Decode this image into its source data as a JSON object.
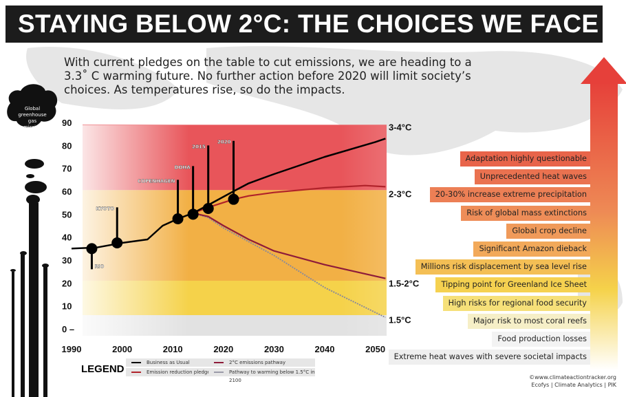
{
  "title": "STAYING BELOW 2°C: THE CHOICES WE FACE",
  "intro": "With current pledges on the table to cut emissions, we are heading to a 3.3˚ C warming future. No further action before 2020 will limit society’s choices. As temperatures rise, so do the impacts.",
  "colors": {
    "red_band": "#e8555a",
    "orange_band": "#f2b045",
    "yellow_band": "#f5d24a",
    "grey_band": "#e2e2e2",
    "bau": "#000000",
    "pledges": "#b0222a",
    "two_deg": "#8e1b3a",
    "one_five": "#8a8a9a"
  },
  "chart_data": {
    "type": "line",
    "ylabel": "Global greenhouse gas emissions (GtCO₂eq.)",
    "ylabel_parts": [
      "Global",
      "greenhouse gas",
      "emissions",
      "(GtCO₂eq.)"
    ],
    "xlim": [
      1990,
      2052
    ],
    "ylim": [
      0,
      90
    ],
    "xticks": [
      "1990",
      "2000",
      "2010",
      "2020",
      "2030",
      "2040",
      "2050"
    ],
    "yticks": [
      "0",
      "10",
      "20",
      "30",
      "40",
      "50",
      "60",
      "70",
      "80",
      "90"
    ],
    "bands": [
      {
        "label": "3-4°C",
        "from": 60.5,
        "to": 89,
        "label_at": 88
      },
      {
        "label": "2-3°C",
        "from": 21,
        "to": 60.5,
        "label_at": 59
      },
      {
        "label": "1.5-2°C",
        "from": 6,
        "to": 21,
        "label_at": 20
      },
      {
        "label": "1.5°C",
        "from": -3,
        "to": 6,
        "label_at": 4
      }
    ],
    "series": [
      {
        "name": "Business as Usual",
        "x": [
          1990,
          1995,
          2000,
          2005,
          2008,
          2011,
          2014,
          2017,
          2022,
          2025,
          2030,
          2040,
          2050,
          2052
        ],
        "y": [
          35,
          35.5,
          37.5,
          39,
          45,
          48,
          50.5,
          54,
          60,
          63.5,
          67.5,
          75,
          81.5,
          83
        ]
      },
      {
        "name": "Emission reduction pledges",
        "x": [
          2014,
          2017,
          2022,
          2025,
          2030,
          2040,
          2048,
          2052
        ],
        "y": [
          50.5,
          53,
          56.5,
          58,
          59.5,
          61.5,
          62.5,
          62
        ]
      },
      {
        "name": "2°C emissions pathway",
        "x": [
          2014,
          2017,
          2020,
          2025,
          2030,
          2040,
          2052
        ],
        "y": [
          50.5,
          49,
          45,
          39,
          34,
          28,
          22
        ]
      },
      {
        "name": "Pathway to warming below 1.5°C in 2100",
        "x": [
          2014,
          2017,
          2020,
          2025,
          2030,
          2040,
          2052
        ],
        "y": [
          50.5,
          48.5,
          44,
          38,
          32,
          18,
          5
        ]
      }
    ],
    "milestones": [
      {
        "label": "RIO",
        "x": 1994,
        "y": 35,
        "end": 26
      },
      {
        "label": "KYOTO",
        "x": 1999,
        "y": 37.5,
        "end": 53
      },
      {
        "label": "COPENHAGEN",
        "x": 2011,
        "y": 48,
        "end": 65
      },
      {
        "label": "DOHA",
        "x": 2014,
        "y": 50,
        "end": 71
      },
      {
        "label": "2015",
        "x": 2017,
        "y": 52.5,
        "end": 80
      },
      {
        "label": "2020",
        "x": 2022,
        "y": 56.5,
        "end": 82
      }
    ]
  },
  "impacts": [
    {
      "label": "Adaptation highly questionable",
      "color": "#e8644a"
    },
    {
      "label": "Unprecedented heat waves",
      "color": "#ea7250"
    },
    {
      "label": "20-30% increase extreme precipitation",
      "color": "#ec7f55"
    },
    {
      "label": "Risk of global mass extinctions",
      "color": "#ee8d58"
    },
    {
      "label": "Global crop decline",
      "color": "#f09a5a"
    },
    {
      "label": "Significant Amazon dieback",
      "color": "#f2a95a"
    },
    {
      "label": "Millions risk displacement by sea level rise",
      "color": "#f4bf55"
    },
    {
      "label": "Tipping point for Greenland Ice Sheet",
      "color": "#f5d150"
    },
    {
      "label": "High risks for regional food security",
      "color": "#f6e079"
    },
    {
      "label": "Major risk to most coral reefs",
      "color": "#f6efc7"
    },
    {
      "label": "Food production losses",
      "color": "#f3f3f3"
    },
    {
      "label": "Extreme heat waves with severe societal impacts",
      "color": "#efefef"
    }
  ],
  "legend": {
    "title": "LEGEND",
    "items": [
      "Business as Usual",
      "Emission reduction pledges",
      "2°C emissions pathway",
      "Pathway to warming below 1.5°C in 2100"
    ]
  },
  "credit": {
    "line1": "©www.climateactiontracker.org",
    "line2": "Ecofys | Climate Analytics | PIK"
  }
}
